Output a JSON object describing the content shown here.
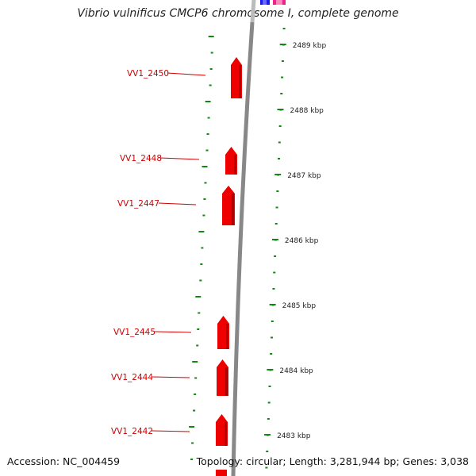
{
  "title": "Vibrio vulnificus CMCP6 chromosome I, complete genome",
  "accession": "Accession: NC_004459",
  "topology": "Topology: circular; Length: 3,281,944 bp; Genes: 3,038",
  "colors": {
    "gene": "#ee0000",
    "label": "#cc0000",
    "tick": "#118811",
    "backbone": "#888888",
    "top_feature_blue": "#1a1aee",
    "top_feature_pink": "#ee2288"
  },
  "scale_ticks": [
    {
      "kbp": 2489,
      "label": "2489 kbp"
    },
    {
      "kbp": 2488,
      "label": "2488 kbp"
    },
    {
      "kbp": 2487,
      "label": "2487 kbp"
    },
    {
      "kbp": 2486,
      "label": "2486 kbp"
    },
    {
      "kbp": 2485,
      "label": "2485 kbp"
    },
    {
      "kbp": 2484,
      "label": "2484 kbp"
    },
    {
      "kbp": 2483,
      "label": "2483 kbp"
    }
  ],
  "genes": [
    {
      "label": "VV1_2450"
    },
    {
      "label": "VV1_2448"
    },
    {
      "label": "VV1_2447"
    },
    {
      "label": "VV1_2445"
    },
    {
      "label": "VV1_2444"
    },
    {
      "label": "VV1_2442"
    }
  ]
}
